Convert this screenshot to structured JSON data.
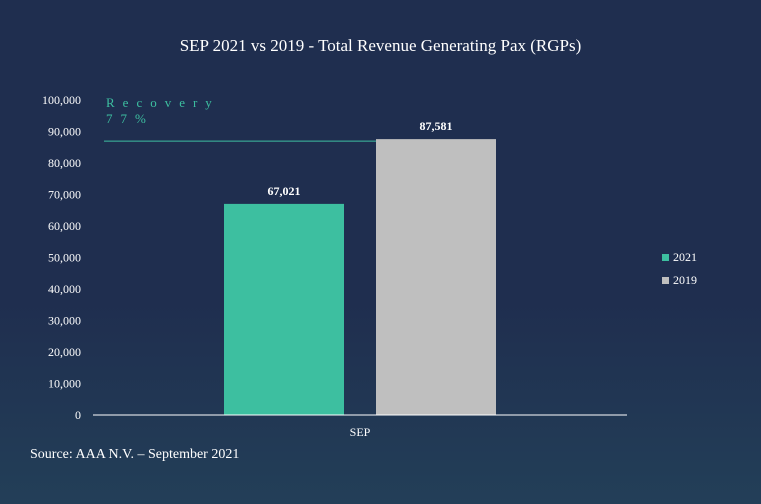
{
  "chart_data": {
    "type": "bar",
    "title": "SEP 2021 vs 2019 - Total Revenue Generating Pax (RGPs)",
    "categories": [
      "SEP"
    ],
    "series": [
      {
        "name": "2021",
        "values": [
          67021
        ],
        "value_label": "67,021",
        "color": "#3dbfa0"
      },
      {
        "name": "2019",
        "values": [
          87581
        ],
        "value_label": "87,581",
        "color": "#bfbfbf"
      }
    ],
    "ylim": [
      0,
      100000
    ],
    "yticks": [
      "0",
      "10,000",
      "20,000",
      "30,000",
      "40,000",
      "50,000",
      "60,000",
      "70,000",
      "80,000",
      "90,000",
      "100,000"
    ],
    "xlabel": "",
    "ylabel": "",
    "legend_position": "right",
    "grid": false,
    "annotation": {
      "line1": "Recovery",
      "line2": "77%",
      "color": "#3dbfa0"
    }
  },
  "footer": {
    "source": "Source: AAA N.V. – September 2021"
  }
}
